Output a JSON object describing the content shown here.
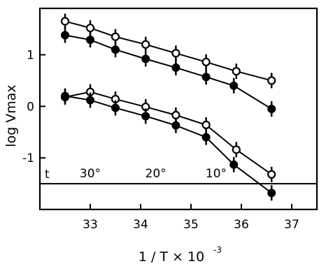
{
  "chart_data": {
    "type": "scatter",
    "title": "",
    "xlabel": "1 / T × 10",
    "xlabel_exponent": "-3",
    "ylabel": "log Vmax",
    "xlim": [
      32.0,
      37.5
    ],
    "ylim": [
      -2.0,
      1.9
    ],
    "x_ticks": [
      33,
      34,
      35,
      36,
      37
    ],
    "y_ticks": [
      1,
      0,
      -1
    ],
    "grid": false,
    "legend": "none",
    "temperature_axis": {
      "prefix": "t",
      "labels": [
        {
          "text": "30°",
          "x": 33.0
        },
        {
          "text": "20°",
          "x": 34.3
        },
        {
          "text": "10°",
          "x": 35.5
        }
      ],
      "line_y": -1.5
    },
    "series": [
      {
        "marker": "open",
        "x": [
          32.5,
          33.0,
          33.5,
          34.1,
          34.7,
          35.3,
          35.9,
          36.6
        ],
        "y": [
          1.65,
          1.52,
          1.35,
          1.2,
          1.03,
          0.86,
          0.68,
          0.5
        ]
      },
      {
        "marker": "filled",
        "x": [
          32.5,
          33.0,
          33.5,
          34.1,
          34.7,
          35.3,
          35.85,
          36.6
        ],
        "y": [
          1.38,
          1.29,
          1.1,
          0.92,
          0.75,
          0.57,
          0.4,
          -0.05
        ]
      },
      {
        "marker": "open",
        "x": [
          32.5,
          33.0,
          33.5,
          34.1,
          34.7,
          35.3,
          35.9,
          36.6
        ],
        "y": [
          0.18,
          0.28,
          0.14,
          -0.01,
          -0.17,
          -0.36,
          -0.84,
          -1.32
        ]
      },
      {
        "marker": "filled",
        "x": [
          32.5,
          33.0,
          33.5,
          34.1,
          34.7,
          35.3,
          35.85,
          36.6
        ],
        "y": [
          0.2,
          0.12,
          -0.03,
          -0.19,
          -0.37,
          -0.6,
          -1.13,
          -1.68
        ]
      }
    ]
  }
}
